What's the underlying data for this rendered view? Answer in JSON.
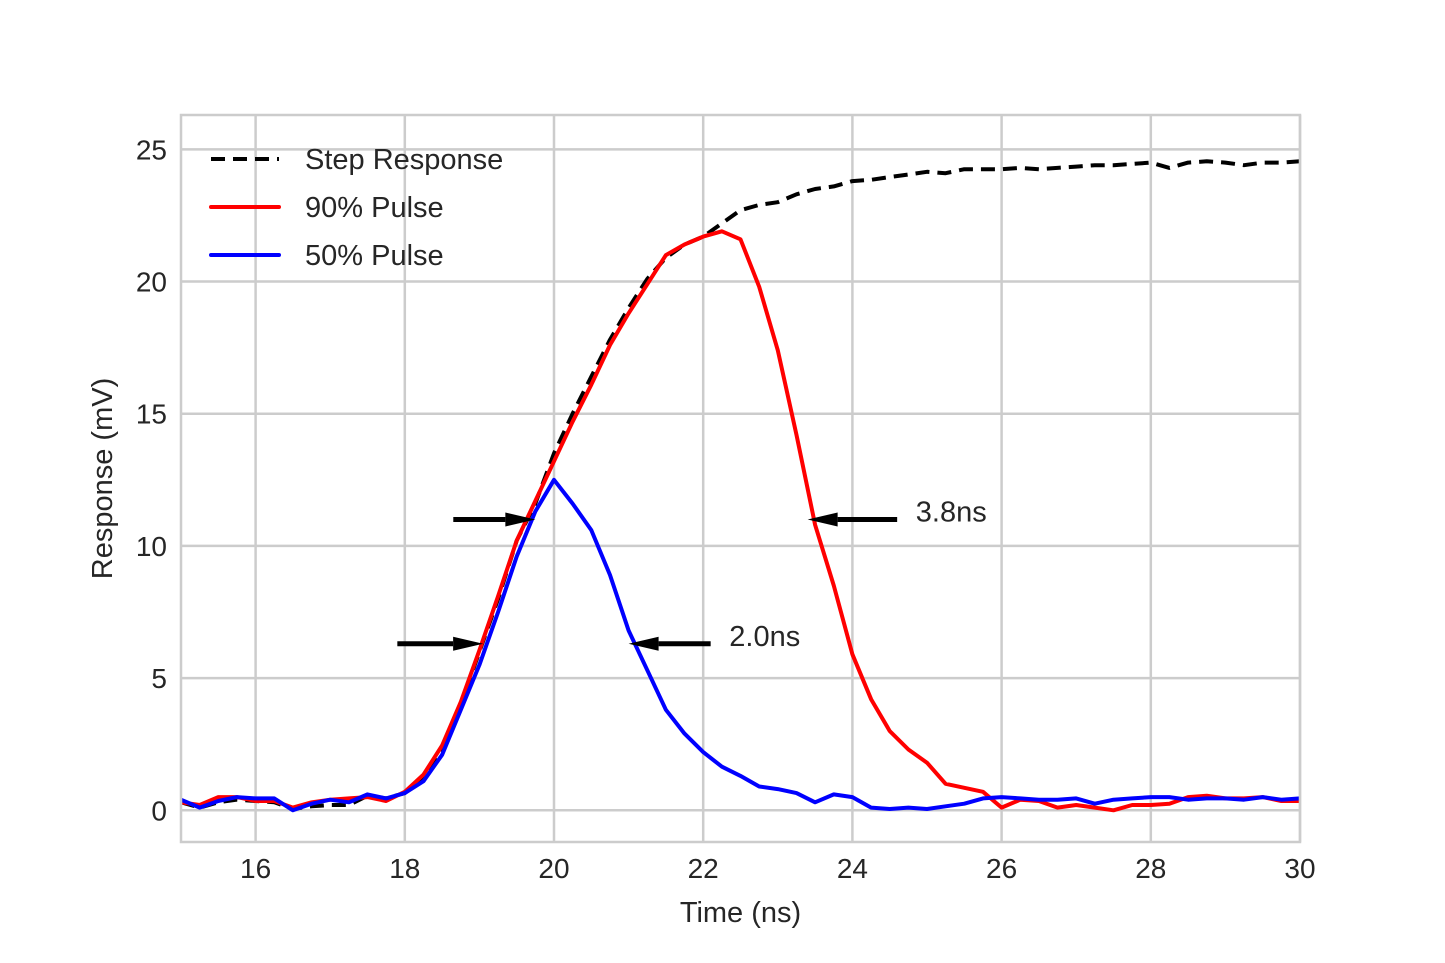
{
  "chart_data": {
    "type": "line",
    "title": "",
    "xlabel": "Time (ns)",
    "ylabel": "Response (mV)",
    "xlim": [
      15,
      30
    ],
    "ylim": [
      -1.2,
      26.3
    ],
    "xticks": [
      16,
      18,
      20,
      22,
      24,
      26,
      28,
      30
    ],
    "yticks": [
      0,
      5,
      10,
      15,
      20,
      25
    ],
    "grid": true,
    "legend_position": "top-left",
    "x": [
      15.0,
      15.25,
      15.5,
      15.75,
      16.0,
      16.25,
      16.5,
      16.75,
      17.0,
      17.25,
      17.5,
      17.75,
      18.0,
      18.25,
      18.5,
      18.75,
      19.0,
      19.25,
      19.5,
      19.75,
      20.0,
      20.25,
      20.5,
      20.75,
      21.0,
      21.25,
      21.5,
      21.75,
      22.0,
      22.25,
      22.5,
      22.75,
      23.0,
      23.25,
      23.5,
      23.75,
      24.0,
      24.25,
      24.5,
      24.75,
      25.0,
      25.25,
      25.5,
      25.75,
      26.0,
      26.25,
      26.5,
      26.75,
      27.0,
      27.25,
      27.5,
      27.75,
      28.0,
      28.25,
      28.5,
      28.75,
      29.0,
      29.25,
      29.5,
      29.75,
      30.0
    ],
    "series": [
      {
        "name": "Step Response",
        "color": "#000000",
        "style": "dashed",
        "values": [
          0.3,
          0.1,
          0.3,
          0.4,
          0.35,
          0.3,
          0.05,
          0.15,
          0.2,
          0.2,
          0.55,
          0.45,
          0.65,
          1.2,
          2.3,
          4.0,
          6.0,
          8.0,
          10.2,
          11.6,
          13.5,
          15.0,
          16.4,
          17.8,
          19.0,
          20.1,
          20.9,
          21.4,
          21.7,
          22.2,
          22.7,
          22.9,
          23.0,
          23.3,
          23.5,
          23.6,
          23.8,
          23.85,
          23.95,
          24.05,
          24.15,
          24.1,
          24.25,
          24.25,
          24.25,
          24.3,
          24.25,
          24.3,
          24.35,
          24.4,
          24.4,
          24.45,
          24.5,
          24.3,
          24.5,
          24.55,
          24.5,
          24.4,
          24.5,
          24.5,
          24.55
        ]
      },
      {
        "name": "90% Pulse",
        "color": "#ff0000",
        "style": "solid",
        "values": [
          0.3,
          0.2,
          0.5,
          0.5,
          0.35,
          0.35,
          0.1,
          0.3,
          0.4,
          0.45,
          0.5,
          0.35,
          0.7,
          1.35,
          2.45,
          4.1,
          6.05,
          8.1,
          10.2,
          11.7,
          13.2,
          14.7,
          16.1,
          17.6,
          18.8,
          19.9,
          21.0,
          21.4,
          21.7,
          21.9,
          21.6,
          19.8,
          17.4,
          14.2,
          10.8,
          8.5,
          5.9,
          4.2,
          3.0,
          2.3,
          1.8,
          1.0,
          0.85,
          0.7,
          0.1,
          0.4,
          0.35,
          0.1,
          0.2,
          0.1,
          0.0,
          0.2,
          0.2,
          0.25,
          0.5,
          0.55,
          0.45,
          0.45,
          0.5,
          0.35,
          0.35
        ]
      },
      {
        "name": "50% Pulse",
        "color": "#0000ff",
        "style": "solid",
        "values": [
          0.4,
          0.1,
          0.35,
          0.5,
          0.45,
          0.45,
          0.0,
          0.25,
          0.4,
          0.3,
          0.6,
          0.45,
          0.65,
          1.1,
          2.1,
          3.8,
          5.5,
          7.5,
          9.6,
          11.3,
          12.5,
          11.6,
          10.6,
          8.9,
          6.8,
          5.3,
          3.8,
          2.9,
          2.2,
          1.65,
          1.3,
          0.9,
          0.8,
          0.65,
          0.3,
          0.6,
          0.5,
          0.1,
          0.05,
          0.1,
          0.05,
          0.15,
          0.25,
          0.45,
          0.5,
          0.45,
          0.4,
          0.4,
          0.45,
          0.25,
          0.4,
          0.45,
          0.5,
          0.5,
          0.4,
          0.45,
          0.45,
          0.4,
          0.5,
          0.4,
          0.45
        ]
      }
    ],
    "annotations": [
      {
        "text": "3.8ns",
        "arrows": [
          {
            "from": [
              18.65,
              11.0
            ],
            "to": [
              19.75,
              11.0
            ],
            "direction": "right"
          },
          {
            "from": [
              24.6,
              11.0
            ],
            "to": [
              23.4,
              11.0
            ],
            "direction": "left"
          }
        ],
        "label_at": [
          24.85,
          11.3
        ]
      },
      {
        "text": "2.0ns",
        "arrows": [
          {
            "from": [
              17.9,
              6.3
            ],
            "to": [
              19.05,
              6.3
            ],
            "direction": "right"
          },
          {
            "from": [
              22.1,
              6.3
            ],
            "to": [
              21.0,
              6.3
            ],
            "direction": "left"
          }
        ],
        "label_at": [
          22.35,
          6.6
        ]
      }
    ]
  }
}
